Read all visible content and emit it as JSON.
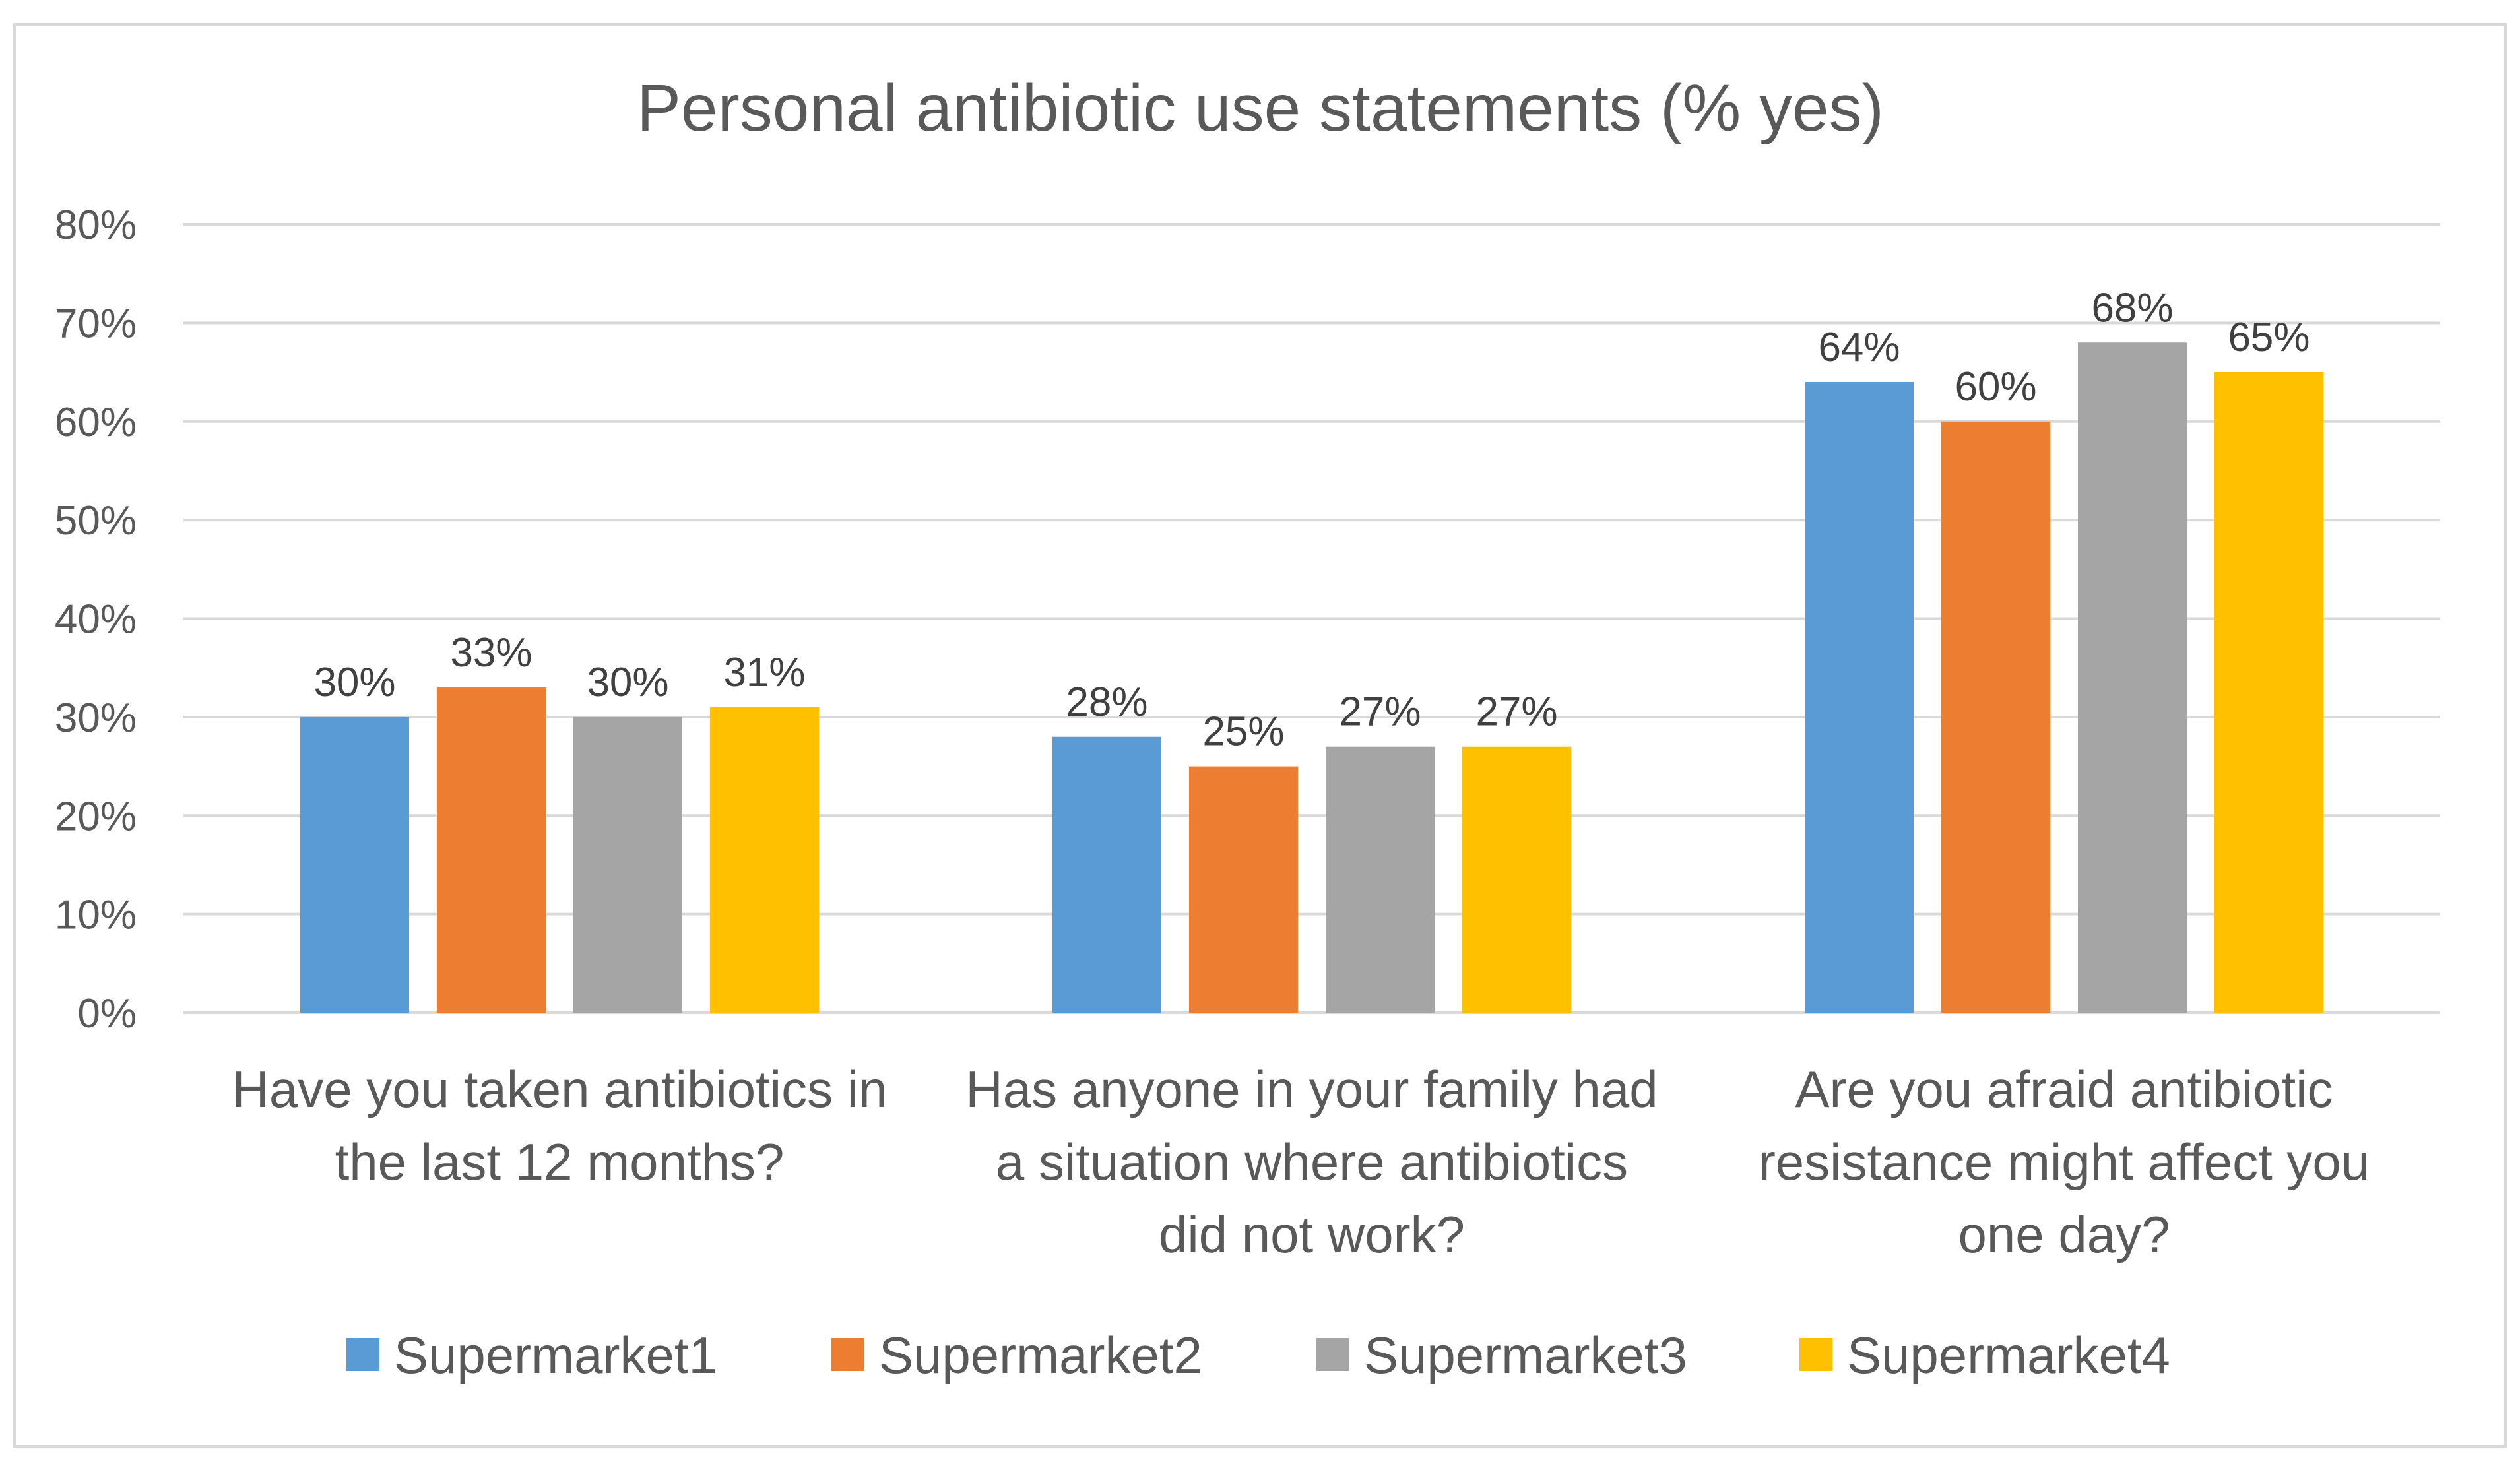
{
  "chart_data": {
    "type": "bar",
    "title": "Personal antibiotic use statements (% yes)",
    "xlabel": "",
    "ylabel": "",
    "ylim": [
      0,
      80
    ],
    "yticks": [
      0,
      10,
      20,
      30,
      40,
      50,
      60,
      70,
      80
    ],
    "ytick_format": "%",
    "grid": true,
    "legend_position": "bottom",
    "categories": [
      [
        "Have you taken antibiotics in",
        "the last 12 months?"
      ],
      [
        "Has anyone in your family had",
        "a situation where antibiotics",
        "did not work?"
      ],
      [
        "Are you afraid antibiotic",
        "resistance might affect you",
        "one day?"
      ]
    ],
    "series": [
      {
        "name": "Supermarket1",
        "color": "#5B9BD5",
        "values": [
          30,
          28,
          64
        ],
        "labels": [
          "30%",
          "28%",
          "64%"
        ]
      },
      {
        "name": "Supermarket2",
        "color": "#ED7D31",
        "values": [
          33,
          25,
          60
        ],
        "labels": [
          "33%",
          "25%",
          "60%"
        ]
      },
      {
        "name": "Supermarket3",
        "color": "#A5A5A5",
        "values": [
          30,
          27,
          68
        ],
        "labels": [
          "30%",
          "27%",
          "68%"
        ]
      },
      {
        "name": "Supermarket4",
        "color": "#FFC000",
        "values": [
          31,
          27,
          65
        ],
        "labels": [
          "31%",
          "27%",
          "65%"
        ]
      }
    ]
  }
}
